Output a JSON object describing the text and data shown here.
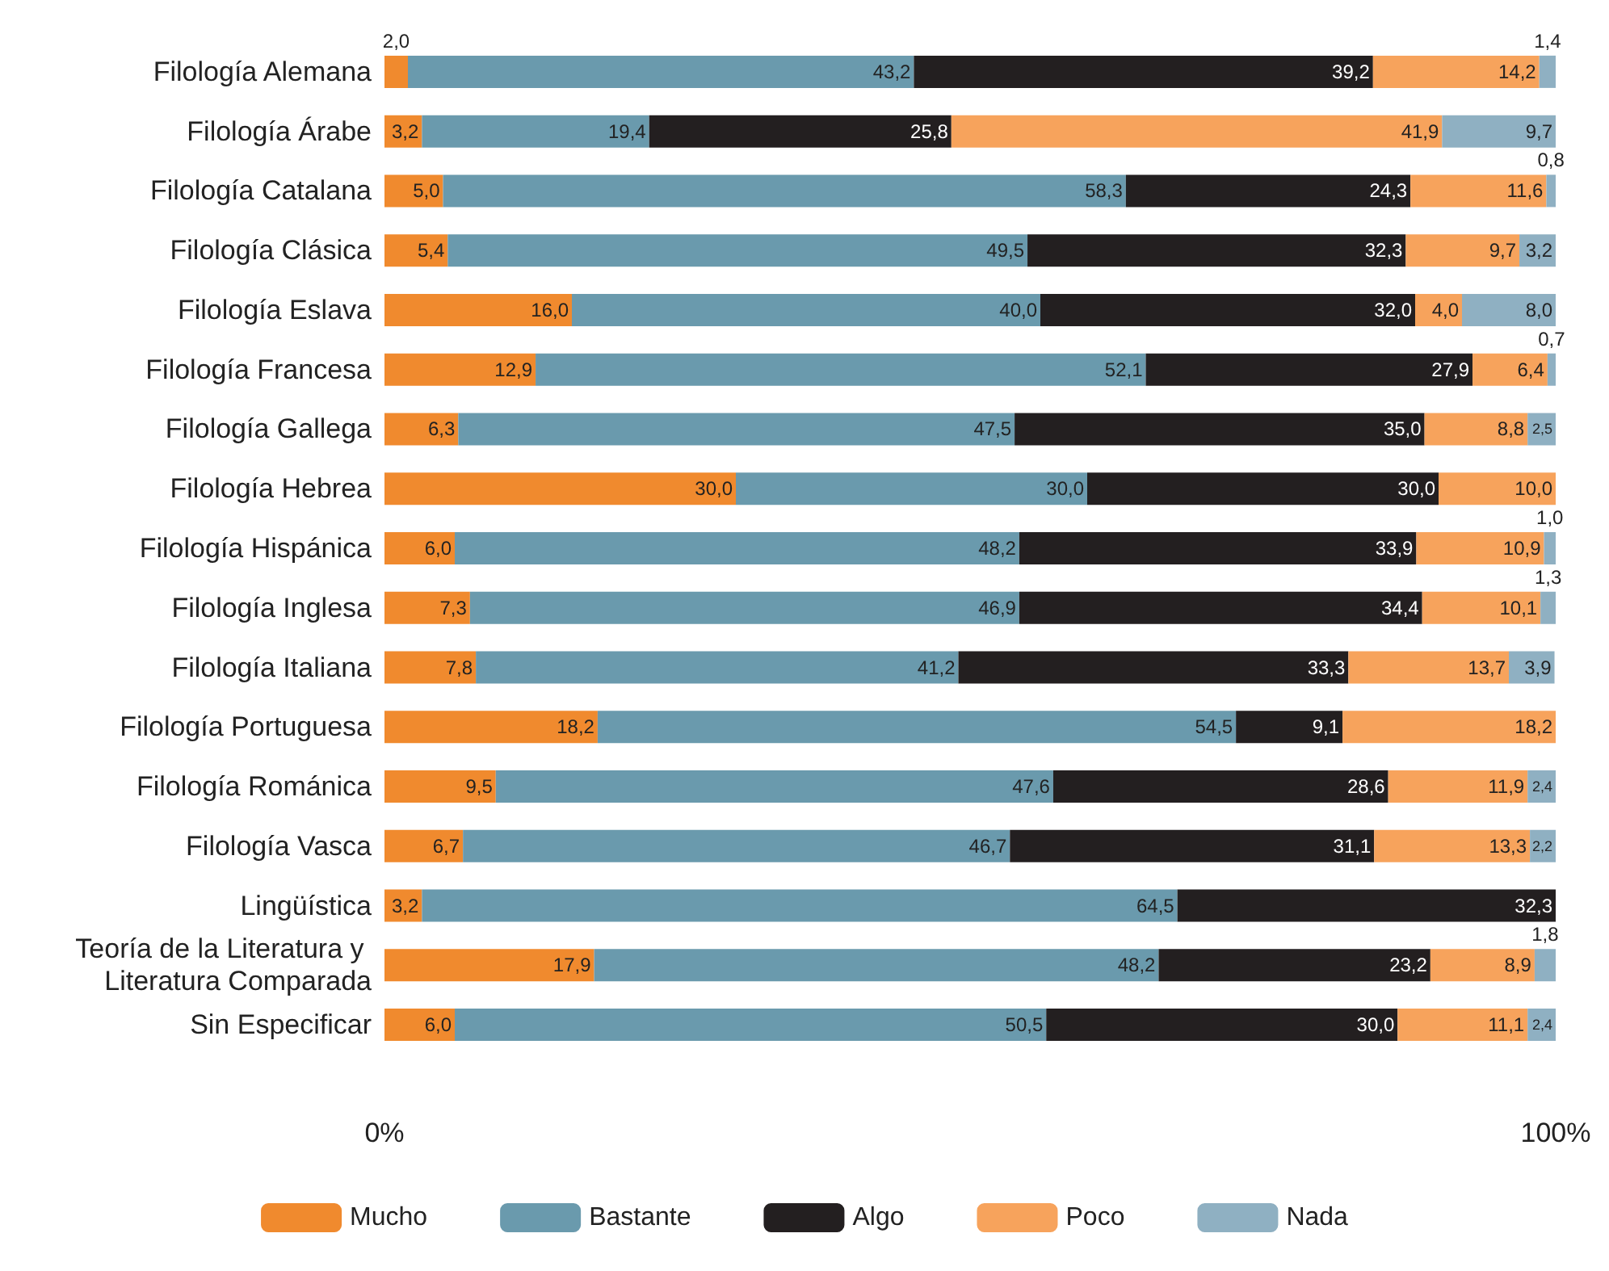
{
  "chart_data": {
    "type": "bar",
    "orientation": "horizontal",
    "stacked": true,
    "categories": [
      "Filología Alemana",
      "Filología Árabe",
      "Filología Catalana",
      "Filología Clásica",
      "Filología Eslava",
      "Filología Francesa",
      "Filología Gallega",
      "Filología Hebrea",
      "Filología Hispánica",
      "Filología Inglesa",
      "Filología Italiana",
      "Filología Portuguesa",
      "Filología Románica",
      "Filología Vasca",
      "Lingüística",
      "Teoría de la Literatura y Literatura Comparada",
      "Sin Especificar"
    ],
    "series": [
      {
        "name": "Mucho",
        "color": "#f08a2e",
        "values": [
          2.0,
          3.2,
          5.0,
          5.4,
          16.0,
          12.9,
          6.3,
          30.0,
          6.0,
          7.3,
          7.8,
          18.2,
          9.5,
          6.7,
          3.2,
          17.9,
          6.0
        ],
        "value_labels": [
          "2,0",
          "3,2",
          "5,0",
          "5,4",
          "16,0",
          "12,9",
          "6,3",
          "30,0",
          "6,0",
          "7,3",
          "7,8",
          "18,2",
          "9,5",
          "6,7",
          "3,2",
          "17,9",
          "6,0"
        ]
      },
      {
        "name": "Bastante",
        "color": "#6a9aad",
        "values": [
          43.2,
          19.4,
          58.3,
          49.5,
          40.0,
          52.1,
          47.5,
          30.0,
          48.2,
          46.9,
          41.2,
          54.5,
          47.6,
          46.7,
          64.5,
          48.2,
          50.5
        ],
        "value_labels": [
          "43,2",
          "19,4",
          "58,3",
          "49,5",
          "40,0",
          "52,1",
          "47,5",
          "30,0",
          "48,2",
          "46,9",
          "41,2",
          "54,5",
          "47,6",
          "46,7",
          "64,5",
          "48,2",
          "50,5"
        ]
      },
      {
        "name": "Algo",
        "color": "#231f20",
        "values": [
          39.2,
          25.8,
          24.3,
          32.3,
          32.0,
          27.9,
          35.0,
          30.0,
          33.9,
          34.4,
          33.3,
          9.1,
          28.6,
          31.1,
          32.3,
          23.2,
          30.0
        ],
        "value_labels": [
          "39,2",
          "25,8",
          "24,3",
          "32,3",
          "32,0",
          "27,9",
          "35,0",
          "30,0",
          "33,9",
          "34,4",
          "33,3",
          "9,1",
          "28,6",
          "31,1",
          "32,3",
          "23,2",
          "30,0"
        ]
      },
      {
        "name": "Poco",
        "color": "#f7a35c",
        "values": [
          14.2,
          41.9,
          11.6,
          9.7,
          4.0,
          6.4,
          8.8,
          10.0,
          10.9,
          10.1,
          13.7,
          18.2,
          11.9,
          13.3,
          null,
          8.9,
          11.1
        ],
        "value_labels": [
          "14,2",
          "41,9",
          "11,6",
          "9,7",
          "4,0",
          "6,4",
          "8,8",
          "10,0",
          "10,9",
          "10,1",
          "13,7",
          "18,2",
          "11,9",
          "13,3",
          null,
          "8,9",
          "11,1"
        ]
      },
      {
        "name": "Nada",
        "color": "#8fb0c2",
        "values": [
          1.4,
          9.7,
          0.8,
          3.2,
          8.0,
          0.7,
          2.5,
          null,
          1.0,
          1.3,
          3.9,
          null,
          2.4,
          2.2,
          null,
          1.8,
          2.4
        ],
        "value_labels": [
          "1,4",
          "9,7",
          "0,8",
          "3,2",
          "8,0",
          "0,7",
          "2,5",
          null,
          "1,0",
          "1,3",
          "3,9",
          null,
          "2,4",
          "2,2",
          null,
          "1,8",
          "2,4"
        ]
      }
    ],
    "xlim": [
      0,
      100
    ],
    "xticks": [
      {
        "value": 0,
        "label": "0%"
      },
      {
        "value": 100,
        "label": "100%"
      }
    ],
    "grid": false,
    "legend": "bottom"
  }
}
